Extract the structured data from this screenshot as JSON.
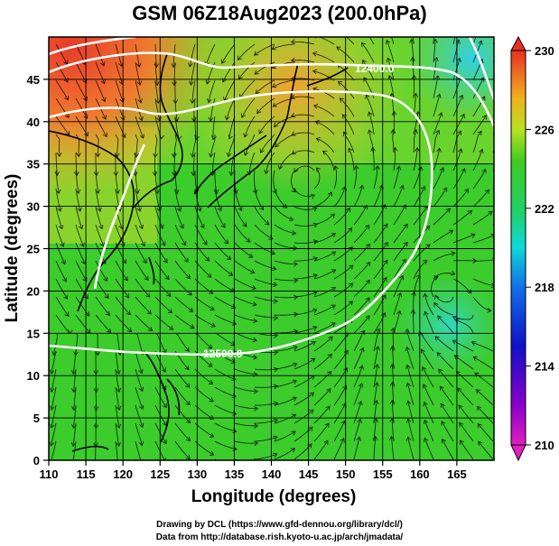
{
  "title": "GSM 06Z18Aug2023 (200.0hPa)",
  "xlabel": "Longitude (degrees)",
  "ylabel": "Latitude  (degrees)",
  "x_ticks": [
    "110",
    "115",
    "120",
    "125",
    "130",
    "135",
    "140",
    "145",
    "150",
    "155",
    "160",
    "165"
  ],
  "x_tick_values": [
    110,
    115,
    120,
    125,
    130,
    135,
    140,
    145,
    150,
    155,
    160,
    165
  ],
  "y_ticks": [
    "0",
    "5",
    "10",
    "15",
    "20",
    "25",
    "30",
    "35",
    "40",
    "45"
  ],
  "y_tick_values": [
    0,
    5,
    10,
    15,
    20,
    25,
    30,
    35,
    40,
    45
  ],
  "xlim": [
    110,
    170
  ],
  "ylim": [
    0,
    50
  ],
  "colorbar": {
    "labels": [
      "230",
      "226",
      "222",
      "218",
      "214",
      "210"
    ],
    "values": [
      230,
      226,
      222,
      218,
      214,
      210
    ],
    "range": [
      210,
      230
    ]
  },
  "contours": [
    {
      "label": "12400.0",
      "value": 12400.0
    },
    {
      "label": "12500.0",
      "value": 12500.0
    }
  ],
  "footer": {
    "line1": "Drawing by DCL (https://www.gfd-dennou.org/library/dcl/)",
    "line2": "Data from http://database.rish.kyoto-u.ac.jp/arch/jmadata/"
  },
  "colors": {
    "background_field": "#33cc33",
    "high_temp": "#e84a2a",
    "contour": "#ffffff",
    "land": "#000000"
  }
}
